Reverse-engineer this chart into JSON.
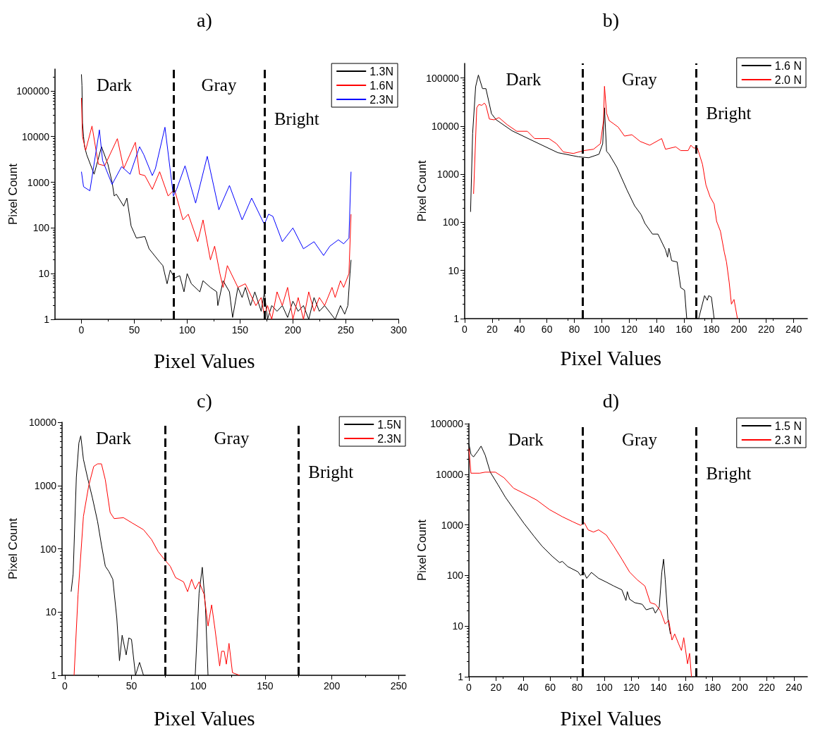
{
  "chart_data": [
    {
      "type": "line",
      "title": "a)",
      "xlabel": "Pixel Values",
      "ylabel": "Pixel Count",
      "annotations": [
        "Dark",
        "Gray",
        "Bright"
      ],
      "log": "y",
      "legend": "top right",
      "marker": "none",
      "xlim": [
        -25,
        300
      ],
      "xticks": [
        0,
        50,
        100,
        150,
        200,
        250,
        300
      ],
      "ylim": [
        1,
        300000
      ],
      "yticks": [
        1,
        10,
        100,
        1000,
        10000,
        100000
      ],
      "ref_lines": [
        {
          "axis": "x",
          "value": 87,
          "color": "#000000",
          "line_style": "dashed"
        },
        {
          "axis": "x",
          "value": 173,
          "color": "#000000",
          "line_style": "dashed"
        }
      ],
      "series": [
        {
          "name": "1.3N",
          "color": "#000000",
          "x": [
            0,
            0.5,
            1,
            2,
            3,
            5,
            12,
            19,
            25,
            29,
            31,
            33,
            40,
            43,
            47,
            52,
            60,
            64,
            74,
            77,
            81,
            84,
            88,
            93,
            97,
            100,
            104,
            112,
            115,
            122,
            128,
            129,
            134,
            140,
            143,
            148,
            152,
            155,
            160,
            164,
            170,
            173,
            176,
            180,
            185,
            190,
            195,
            200,
            205,
            210,
            215,
            220,
            225,
            230,
            240,
            245,
            249,
            252,
            254,
            255
          ],
          "values": [
            230000,
            130000,
            20000,
            10000,
            6000,
            4000,
            1500,
            6000,
            2500,
            1000,
            500,
            550,
            300,
            450,
            110,
            60,
            65,
            35,
            18,
            15,
            6,
            12,
            8,
            9,
            4,
            10,
            6,
            4,
            7,
            5,
            4,
            2,
            7,
            4,
            1.1,
            5,
            3,
            5,
            2,
            4,
            1.5,
            4,
            1,
            2,
            1.5,
            2,
            1.1,
            2.5,
            1.5,
            2,
            1,
            3,
            1.5,
            2,
            1,
            2,
            1.3,
            2,
            10,
            20
          ]
        },
        {
          "name": "1.6N",
          "color": "#ff0000",
          "x": [
            0,
            1,
            4,
            10,
            16,
            22,
            34,
            40,
            51,
            55,
            60,
            67,
            74,
            82,
            88,
            96,
            101,
            110,
            115,
            122,
            126,
            131,
            134,
            138,
            148,
            155,
            165,
            170,
            173,
            176,
            180,
            185,
            190,
            195,
            200,
            205,
            210,
            215,
            220,
            225,
            230,
            237,
            240,
            245,
            248,
            253,
            255
          ],
          "values": [
            70000,
            10000,
            5000,
            17000,
            2500,
            2300,
            9000,
            2000,
            7500,
            1500,
            1400,
            700,
            1700,
            500,
            700,
            150,
            200,
            50,
            150,
            20,
            40,
            10,
            5,
            15,
            5,
            6,
            2,
            3,
            1.2,
            2,
            1,
            4,
            2,
            5,
            1,
            3,
            1,
            4,
            1.5,
            3,
            2,
            5,
            3,
            7,
            5,
            10,
            200
          ]
        },
        {
          "name": "2.3N",
          "color": "#0000ff",
          "x": [
            0,
            2,
            8,
            17,
            20,
            29,
            38,
            46,
            55,
            59,
            67,
            70,
            79,
            87,
            90,
            98,
            108,
            119,
            130,
            140,
            152,
            161,
            173,
            177,
            181,
            190,
            200,
            210,
            220,
            229,
            235,
            243,
            248,
            253,
            255
          ],
          "values": [
            1700,
            800,
            650,
            14000,
            3000,
            900,
            2200,
            1500,
            6000,
            4000,
            1400,
            2000,
            16000,
            500,
            700,
            2300,
            350,
            3700,
            250,
            850,
            150,
            450,
            120,
            200,
            180,
            50,
            100,
            35,
            50,
            25,
            40,
            55,
            45,
            60,
            1700
          ]
        }
      ]
    },
    {
      "type": "line",
      "title": "b)",
      "xlabel": "Pixel Values",
      "ylabel": "Pixel Count",
      "annotations": [
        "Dark",
        "Gray",
        "Bright"
      ],
      "log": "y",
      "legend": "top right",
      "marker": "none",
      "xlim": [
        0,
        250
      ],
      "xticks": [
        0,
        20,
        40,
        60,
        80,
        100,
        120,
        140,
        160,
        180,
        200,
        220,
        240
      ],
      "ylim": [
        1,
        200000
      ],
      "yticks": [
        1,
        10,
        100,
        1000,
        10000,
        100000
      ],
      "ref_lines": [
        {
          "axis": "x",
          "value": 86,
          "color": "#000000",
          "line_style": "dashed"
        },
        {
          "axis": "x",
          "value": 169,
          "color": "#000000",
          "line_style": "dashed"
        }
      ],
      "series": [
        {
          "name": "1.6 N",
          "color": "#000000",
          "x": [
            4.3,
            5.8,
            8,
            10,
            13,
            15.5,
            19.6,
            23,
            34.5,
            49.4,
            68,
            83,
            90.5,
            98,
            100.7,
            102,
            103.5,
            105.4,
            111,
            118.5,
            124,
            128.7,
            131.5,
            137,
            141,
            146.5,
            148,
            149,
            151,
            155,
            157.6,
            160.4,
            162,
            170.7,
            175,
            177,
            178,
            180,
            182
          ],
          "values": [
            165,
            7000,
            66000,
            115000,
            60000,
            60000,
            18000,
            13500,
            8000,
            5000,
            2800,
            2300,
            2200,
            2600,
            4300,
            24000,
            3000,
            2600,
            1400,
            465,
            220,
            145,
            95,
            57,
            57,
            27,
            19,
            29,
            16,
            15,
            4.4,
            3.9,
            1,
            1,
            3,
            2.4,
            3,
            2.8,
            1
          ]
        },
        {
          "name": "2.0 N",
          "color": "#ff0000",
          "x": [
            6.5,
            8.8,
            10.3,
            12.5,
            14.4,
            15.5,
            18,
            21.5,
            25,
            31,
            38,
            45.7,
            51,
            61.5,
            67,
            72,
            79.3,
            87,
            94,
            99,
            101.3,
            102,
            103.5,
            105.4,
            109,
            112,
            116.6,
            122,
            128,
            135,
            143.7,
            146.5,
            154,
            157.6,
            163,
            165,
            167,
            169.8,
            173.5,
            176,
            179,
            182,
            183.8,
            186.6,
            189.4,
            191,
            193,
            194.6,
            196.5,
            199
          ],
          "values": [
            390,
            24000,
            28000,
            27000,
            30000,
            27000,
            14000,
            13500,
            15000,
            10700,
            7800,
            7800,
            5500,
            5500,
            4300,
            2900,
            2700,
            3100,
            3300,
            4300,
            13000,
            67000,
            18600,
            13000,
            11000,
            9500,
            6200,
            6600,
            4800,
            4000,
            5500,
            3300,
            3700,
            3100,
            3100,
            4000,
            3500,
            3500,
            1600,
            600,
            340,
            240,
            105,
            65,
            24,
            15,
            5.6,
            2,
            2.5,
            1
          ]
        }
      ]
    },
    {
      "type": "line",
      "title": "c)",
      "xlabel": "Pixel Values",
      "ylabel": "Pixel Count",
      "annotations": [
        "Dark",
        "Gray",
        "Bright"
      ],
      "log": "y",
      "legend": "top right",
      "marker": "none",
      "xlim": [
        -2,
        255
      ],
      "xticks": [
        0,
        50,
        100,
        150,
        200,
        250
      ],
      "ylim": [
        1,
        10000
      ],
      "yticks": [
        1,
        10,
        100,
        1000,
        10000
      ],
      "ref_lines": [
        {
          "axis": "x",
          "value": 75,
          "color": "#000000",
          "line_style": "dashed"
        },
        {
          "axis": "x",
          "value": 175,
          "color": "#000000",
          "line_style": "dashed"
        }
      ],
      "series": [
        {
          "name": "1.5N",
          "color": "#000000",
          "x": [
            4.8,
            6.3,
            8.7,
            10.6,
            12,
            14,
            17,
            20.8,
            24.6,
            27.5,
            30.4,
            33,
            36,
            39,
            41,
            43,
            46,
            48,
            50,
            53,
            56,
            59,
            97.7,
            100.6,
            103,
            105.4,
            107.3
          ],
          "values": [
            21,
            40,
            1350,
            4700,
            6100,
            2600,
            1350,
            630,
            270,
            115,
            53,
            44,
            33,
            8,
            1.7,
            4.3,
            2.1,
            3.9,
            3.7,
            1,
            1.6,
            1,
            1,
            20,
            51,
            11.6,
            1
          ]
        },
        {
          "name": "2.3N",
          "color": "#ff0000",
          "x": [
            7,
            10,
            14,
            18,
            21.7,
            24.6,
            27.5,
            30.4,
            34,
            37,
            44,
            50.6,
            59,
            65,
            70,
            74.6,
            79,
            83,
            89,
            92,
            95,
            97.7,
            100.6,
            104.4,
            107.3,
            110,
            112.5,
            116,
            117.5,
            119.4,
            121,
            123,
            125.6,
            131
          ],
          "values": [
            1,
            19,
            325,
            1000,
            2000,
            2200,
            2200,
            1230,
            375,
            300,
            310,
            255,
            200,
            140,
            90,
            68,
            53,
            35,
            30,
            21,
            33,
            23,
            30,
            19,
            6,
            13,
            5.4,
            1.4,
            2.4,
            2.4,
            1.5,
            3.2,
            1.1,
            1
          ]
        }
      ]
    },
    {
      "type": "line",
      "title": "d)",
      "xlabel": "Pixel Values",
      "ylabel": "Pixel Count",
      "annotations": [
        "Dark",
        "Gray",
        "Bright"
      ],
      "log": "y",
      "legend": "top right",
      "marker": "none",
      "xlim": [
        0,
        250
      ],
      "xticks": [
        0,
        20,
        40,
        60,
        80,
        100,
        120,
        140,
        160,
        180,
        200,
        220,
        240
      ],
      "ylim": [
        1,
        100000
      ],
      "yticks": [
        1,
        10,
        100,
        1000,
        10000,
        100000
      ],
      "ref_lines": [
        {
          "axis": "x",
          "value": 84,
          "color": "#000000",
          "line_style": "dashed"
        },
        {
          "axis": "x",
          "value": 168,
          "color": "#000000",
          "line_style": "dashed"
        }
      ],
      "series": [
        {
          "name": "1.5 N",
          "color": "#000000",
          "x": [
            0,
            1.5,
            3.4,
            6.3,
            9,
            12,
            15.8,
            21.5,
            27,
            35,
            40.6,
            48,
            54,
            61.5,
            67,
            69,
            73,
            80.6,
            82.5,
            85,
            87,
            90.5,
            95.8,
            101.5,
            107,
            113,
            116,
            117,
            118.7,
            122.5,
            128,
            131,
            136,
            137.7,
            140.6,
            142.5,
            143.8,
            145,
            147,
            148.8
          ],
          "values": [
            40000,
            25000,
            22000,
            28000,
            36000,
            24000,
            11000,
            6200,
            3500,
            1750,
            1080,
            600,
            380,
            240,
            180,
            190,
            150,
            118,
            100,
            115,
            88,
            115,
            88,
            74,
            62,
            52,
            32,
            48,
            34,
            29,
            27,
            21,
            23,
            18,
            24,
            117,
            210,
            83,
            14,
            7
          ]
        },
        {
          "name": "2.3 N",
          "color": "#ff0000",
          "x": [
            0,
            1.5,
            8,
            12,
            19.6,
            26,
            33,
            40.6,
            50,
            59.6,
            69,
            76.8,
            82.5,
            85.3,
            88,
            92,
            95.8,
            101.5,
            107,
            113,
            118.7,
            124.4,
            130,
            134,
            137.7,
            141.5,
            145,
            147.6,
            150,
            152,
            155,
            157,
            158.7,
            161.5,
            163,
            164.4
          ],
          "values": [
            32000,
            10500,
            10500,
            11000,
            11000,
            8500,
            5300,
            4200,
            3100,
            2000,
            1450,
            1150,
            980,
            1100,
            800,
            720,
            800,
            630,
            380,
            210,
            117,
            82,
            62,
            29,
            27,
            20,
            11,
            13,
            5.3,
            7,
            4.4,
            3.3,
            5.9,
            1.8,
            2.9,
            1
          ]
        }
      ]
    }
  ]
}
